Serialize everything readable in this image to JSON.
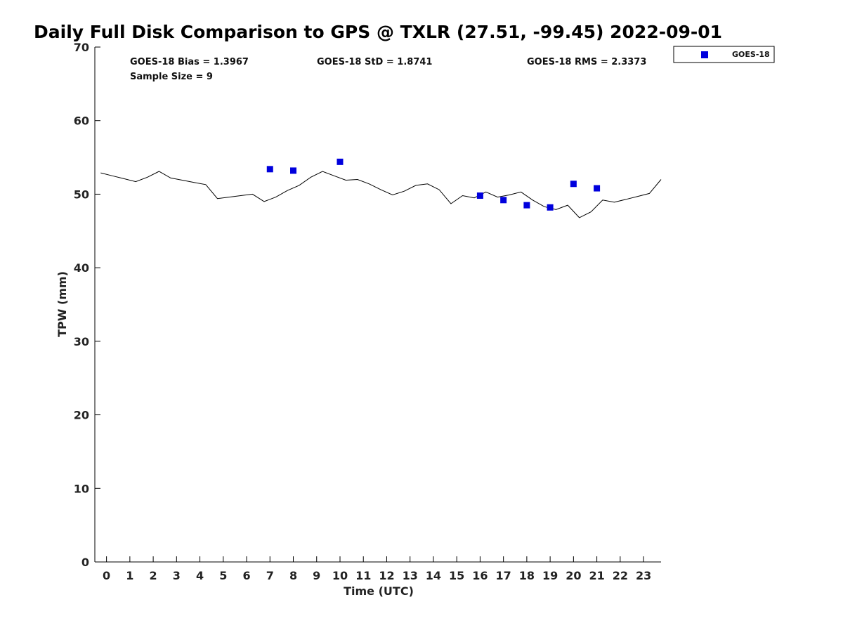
{
  "chart_data": {
    "type": "line",
    "title": "Daily Full Disk Comparison to GPS @ TXLR (27.51, -99.45) 2022-09-01",
    "xlabel": "Time (UTC)",
    "ylabel": "TPW (mm)",
    "xlim": [
      -0.5,
      23.75
    ],
    "ylim": [
      0,
      70
    ],
    "x_ticks": [
      0,
      1,
      2,
      3,
      4,
      5,
      6,
      7,
      8,
      9,
      10,
      11,
      12,
      13,
      14,
      15,
      16,
      17,
      18,
      19,
      20,
      21,
      22,
      23
    ],
    "y_ticks": [
      0,
      10,
      20,
      30,
      40,
      50,
      60,
      70
    ],
    "grid": false,
    "legend": {
      "position": "top-right, outside plot",
      "entries": [
        "GOES-18"
      ]
    },
    "stats": {
      "bias": "GOES-18 Bias = 1.3967",
      "std": "GOES-18 StD = 1.8741",
      "rms": "GOES-18 RMS = 2.3373",
      "sample": "Sample Size = 9"
    },
    "series": [
      {
        "type": "line",
        "color": "#000000",
        "x": [
          -0.25,
          0.25,
          0.75,
          1.25,
          1.75,
          2.25,
          2.75,
          3.25,
          3.75,
          4.25,
          4.75,
          5.25,
          5.75,
          6.25,
          6.75,
          7.25,
          7.75,
          8.25,
          8.75,
          9.25,
          9.75,
          10.25,
          10.75,
          11.25,
          11.75,
          12.25,
          12.75,
          13.25,
          13.75,
          14.25,
          14.75,
          15.25,
          15.75,
          16.25,
          16.75,
          17.25,
          17.75,
          18.25,
          18.75,
          19.25,
          19.75,
          20.25,
          20.75,
          21.25,
          21.75,
          22.25,
          22.75,
          23.25,
          23.75
        ],
        "y": [
          52.9,
          52.5,
          52.1,
          51.7,
          52.3,
          53.1,
          52.2,
          51.9,
          51.6,
          51.3,
          49.4,
          49.6,
          49.8,
          50.0,
          49.0,
          49.6,
          50.5,
          51.2,
          52.3,
          53.1,
          52.5,
          51.9,
          52.0,
          51.4,
          50.6,
          49.9,
          50.4,
          51.2,
          51.4,
          50.6,
          48.7,
          49.8,
          49.5,
          50.3,
          49.6,
          49.9,
          50.3,
          49.2,
          48.3,
          47.9,
          48.5,
          46.8,
          47.6,
          49.2,
          48.9,
          49.3,
          49.7,
          50.1,
          52.0
        ]
      },
      {
        "name": "GOES-18",
        "type": "scatter",
        "marker": "square",
        "color": "#0000dd",
        "x": [
          7,
          8,
          10,
          16,
          17,
          18,
          19,
          20,
          21
        ],
        "y": [
          53.4,
          53.2,
          54.4,
          49.8,
          49.2,
          48.5,
          48.2,
          51.4,
          50.8
        ]
      }
    ]
  }
}
